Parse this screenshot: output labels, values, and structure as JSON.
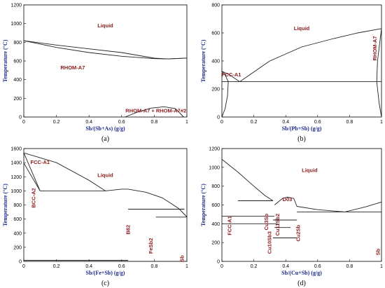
{
  "chart_data": [
    {
      "type": "line",
      "panel_label": "(a)",
      "xlabel": "Sb/(Sb+As) (g/g)",
      "ylabel": "Temperature (°C)",
      "xlim": [
        0,
        1
      ],
      "ylim": [
        0,
        1200
      ],
      "xticks": [
        "0",
        "0.2",
        "0.4",
        "0.6",
        "0.8",
        "1"
      ],
      "yticks": [
        "0",
        "200",
        "400",
        "600",
        "800",
        "1000",
        "1200"
      ],
      "annotations": [
        {
          "text": "Liquid",
          "x": 0.5,
          "y": 960
        },
        {
          "text": "RHOM-A7",
          "x": 0.3,
          "y": 510
        },
        {
          "text": "RHOM-A7 + RHOM-A7#2",
          "x": 0.81,
          "y": 50
        }
      ],
      "series": [
        {
          "x": [
            0,
            0.2,
            0.4,
            0.6,
            0.8,
            0.88,
            1
          ],
          "y": [
            817,
            745,
            690,
            650,
            625,
            622,
            631
          ]
        },
        {
          "x": [
            0,
            0.2,
            0.4,
            0.6,
            0.8,
            0.88,
            1
          ],
          "y": [
            817,
            770,
            730,
            690,
            630,
            622,
            631
          ]
        },
        {
          "x": [
            0.62,
            0.7,
            0.78,
            0.86,
            0.93,
            0.98
          ],
          "y": [
            0,
            55,
            95,
            110,
            90,
            0
          ]
        }
      ]
    },
    {
      "type": "line",
      "panel_label": "(b)",
      "xlabel": "Sb/(Pb+Sb) (g/g)",
      "ylabel": "Temperature (°C)",
      "xlim": [
        0,
        1
      ],
      "ylim": [
        0,
        800
      ],
      "xticks": [
        "0",
        "0.2",
        "0.4",
        "0.6",
        "0.8",
        "1"
      ],
      "yticks": [
        "0",
        "200",
        "400",
        "600",
        "800"
      ],
      "annotations": [
        {
          "text": "Liquid",
          "x": 0.5,
          "y": 620
        },
        {
          "text": "FCC-A1",
          "x": 0.06,
          "y": 290
        },
        {
          "text": "RHOM-A7",
          "x": 0.97,
          "y": 490
        }
      ],
      "series": [
        {
          "x": [
            0,
            0.05,
            0.112
          ],
          "y": [
            327,
            300,
            252
          ]
        },
        {
          "x": [
            0.112,
            0.3,
            0.5,
            0.7,
            0.85,
            1
          ],
          "y": [
            252,
            400,
            500,
            560,
            600,
            631
          ]
        },
        {
          "x": [
            0,
            1
          ],
          "y": [
            252,
            252
          ]
        },
        {
          "x": [
            0,
            0.02,
            0.04,
            0.035,
            0.02,
            0
          ],
          "y": [
            327,
            300,
            252,
            150,
            60,
            0
          ]
        },
        {
          "x": [
            1,
            0.975,
            0.97,
            0.985,
            1
          ],
          "y": [
            631,
            400,
            252,
            100,
            0
          ]
        }
      ]
    },
    {
      "type": "line",
      "panel_label": "(c)",
      "xlabel": "Sb/(Fe+Sb) (g/g)",
      "ylabel": "Temperature (°C)",
      "xlim": [
        0,
        1
      ],
      "ylim": [
        0,
        1600
      ],
      "xticks": [
        "0",
        "0.2",
        "0.4",
        "0.6",
        "0.8",
        "1"
      ],
      "yticks": [
        "0",
        "200",
        "400",
        "600",
        "800",
        "1000",
        "1200",
        "1400",
        "1600"
      ],
      "annotations": [
        {
          "text": "Liquid",
          "x": 0.5,
          "y": 1200
        },
        {
          "text": "FCC-A1",
          "x": 0.1,
          "y": 1380
        },
        {
          "text": "BCC-A2",
          "x": 0.07,
          "y": 900
        },
        {
          "text": "B82",
          "x": 0.65,
          "y": 450
        },
        {
          "text": "FeSb2",
          "x": 0.79,
          "y": 220
        },
        {
          "text": "Sb",
          "x": 0.98,
          "y": 40
        }
      ],
      "series": [
        {
          "x": [
            0,
            0.2,
            0.4,
            0.5
          ],
          "y": [
            1538,
            1400,
            1150,
            1000
          ]
        },
        {
          "x": [
            0.5,
            0.6,
            0.64,
            0.75,
            0.85,
            0.95,
            1
          ],
          "y": [
            1000,
            1025,
            1025,
            980,
            900,
            750,
            631
          ]
        },
        {
          "x": [
            0.1,
            0.5
          ],
          "y": [
            1000,
            1000
          ]
        },
        {
          "x": [
            0,
            0.1
          ],
          "y": [
            1538,
            1000
          ]
        },
        {
          "x": [
            0,
            0.1
          ],
          "y": [
            1394,
            1000
          ]
        },
        {
          "x": [
            0.64,
            0.985
          ],
          "y": [
            740,
            740
          ]
        },
        {
          "x": [
            0.81,
            1
          ],
          "y": [
            628,
            628
          ]
        },
        {
          "x": [
            0,
            0.64
          ],
          "y": [
            15,
            15
          ]
        },
        {
          "x": [
            0,
            1
          ],
          "y": [
            0,
            0
          ]
        }
      ]
    },
    {
      "type": "line",
      "panel_label": "(d)",
      "xlabel": "Sb/(Cu+Sb) (g/g)",
      "ylabel": "Temperature (°C)",
      "xlim": [
        0,
        1
      ],
      "ylim": [
        0,
        1200
      ],
      "xticks": [
        "0",
        "0.2",
        "0.4",
        "0.6",
        "0.8",
        "1"
      ],
      "yticks": [
        "0",
        "200",
        "400",
        "600",
        "800",
        "1000",
        "1200"
      ],
      "annotations": [
        {
          "text": "Liquid",
          "x": 0.55,
          "y": 950
        },
        {
          "text": "D03",
          "x": 0.41,
          "y": 640
        },
        {
          "text": "FCC-A1",
          "x": 0.06,
          "y": 380
        },
        {
          "text": "Cu3Sb",
          "x": 0.29,
          "y": 420
        },
        {
          "text": "Cu11Sb2",
          "x": 0.36,
          "y": 390
        },
        {
          "text": "Cu2Sb",
          "x": 0.49,
          "y": 300
        },
        {
          "text": "Cu10Sb3",
          "x": 0.31,
          "y": 200
        },
        {
          "text": "Sb",
          "x": 0.99,
          "y": 100
        }
      ],
      "series": [
        {
          "x": [
            0,
            0.1,
            0.2,
            0.27,
            0.32
          ],
          "y": [
            1085,
            950,
            800,
            700,
            645
          ]
        },
        {
          "x": [
            0.33,
            0.38,
            0.41,
            0.45,
            0.47
          ],
          "y": [
            600,
            670,
            684,
            670,
            585
          ]
        },
        {
          "x": [
            0.47,
            0.6,
            0.77,
            0.9,
            1
          ],
          "y": [
            585,
            550,
            526,
            580,
            631
          ]
        },
        {
          "x": [
            0.1,
            0.32
          ],
          "y": [
            645,
            645
          ]
        },
        {
          "x": [
            0.47,
            1
          ],
          "y": [
            526,
            526
          ]
        },
        {
          "x": [
            0,
            0.33
          ],
          "y": [
            480,
            480
          ]
        },
        {
          "x": [
            0,
            0.35
          ],
          "y": [
            400,
            400
          ]
        },
        {
          "x": [
            0.32,
            0.47
          ],
          "y": [
            440,
            440
          ]
        },
        {
          "x": [
            0.33,
            0.43
          ],
          "y": [
            360,
            360
          ]
        },
        {
          "x": [
            0.32,
            0.47
          ],
          "y": [
            250,
            250
          ]
        }
      ]
    }
  ]
}
